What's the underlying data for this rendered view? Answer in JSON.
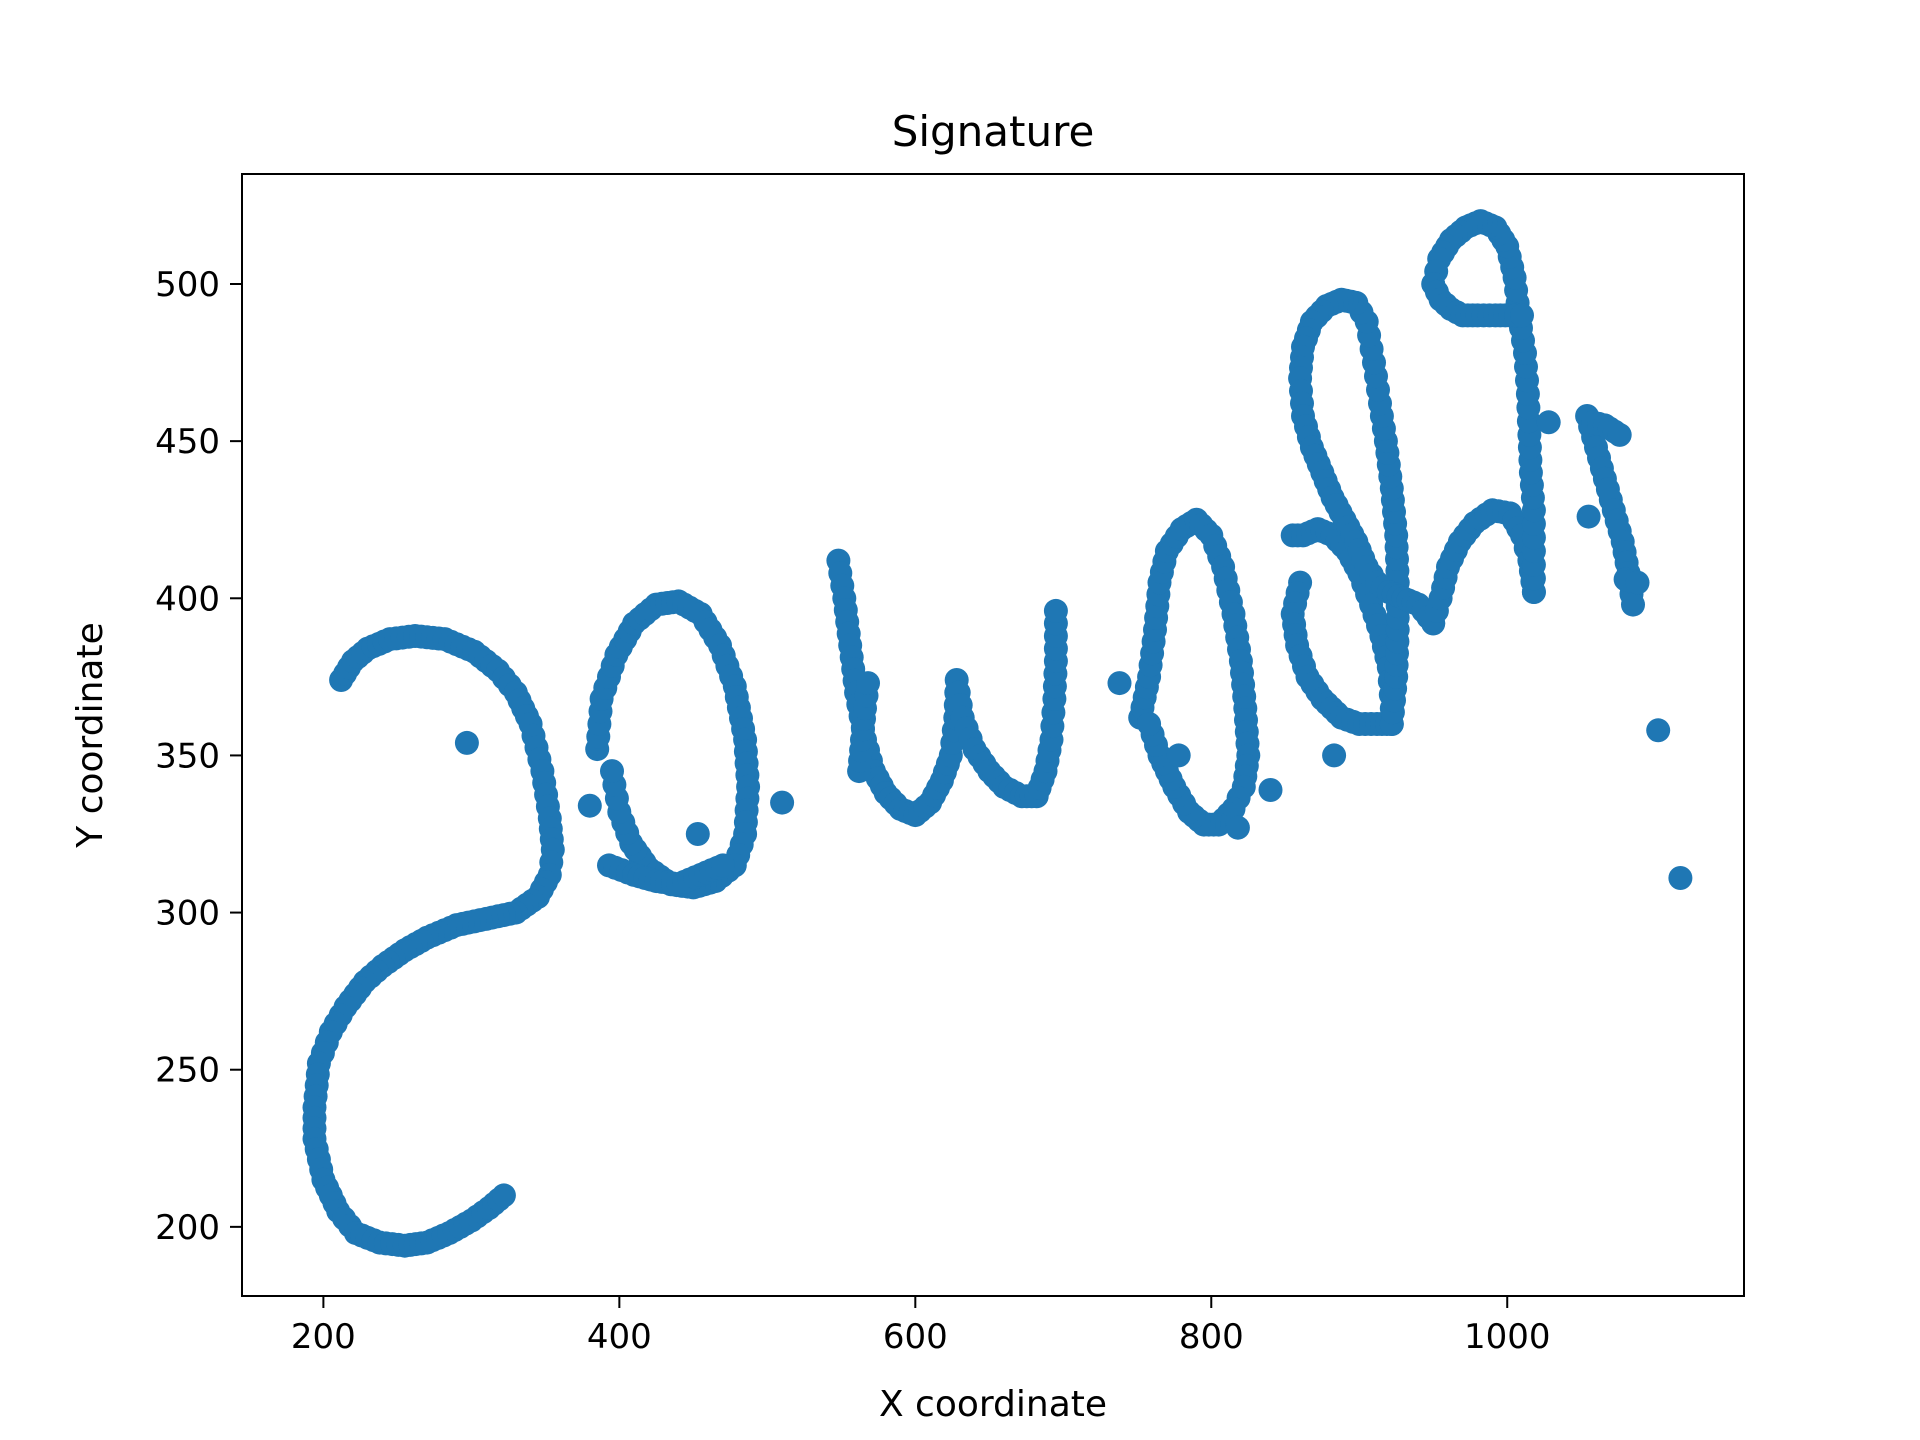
{
  "chart_data": {
    "type": "scatter",
    "title": "Signature",
    "xlabel": "X coordinate",
    "ylabel": "Y coordinate",
    "xlim": [
      145,
      1160
    ],
    "ylim": [
      178,
      535
    ],
    "xticks": [
      200,
      400,
      600,
      800,
      1000
    ],
    "yticks": [
      200,
      250,
      300,
      350,
      400,
      450,
      500
    ],
    "grid": false,
    "legend": "none",
    "marker_color": "#1f77b4",
    "series": [
      {
        "strokes": [
          [
            [
              212,
              374
            ],
            [
              220,
              380
            ],
            [
              230,
              384
            ],
            [
              245,
              387
            ],
            [
              262,
              388
            ],
            [
              282,
              387
            ],
            [
              302,
              383
            ],
            [
              318,
              377
            ],
            [
              330,
              370
            ],
            [
              340,
              360
            ],
            [
              348,
              345
            ],
            [
              353,
              330
            ],
            [
              355,
              320
            ],
            [
              353,
              312
            ],
            [
              345,
              305
            ],
            [
              330,
              300
            ],
            [
              310,
              298
            ],
            [
              290,
              296
            ],
            [
              270,
              292
            ],
            [
              255,
              288
            ],
            [
              240,
              283
            ],
            [
              228,
              278
            ],
            [
              215,
              270
            ],
            [
              205,
              262
            ],
            [
              197,
              252
            ],
            [
              194,
              238
            ],
            [
              194,
              228
            ],
            [
              200,
              215
            ],
            [
              210,
              205
            ],
            [
              222,
              198
            ],
            [
              238,
              195
            ],
            [
              255,
              194
            ],
            [
              270,
              195
            ],
            [
              285,
              198
            ],
            [
              300,
              202
            ],
            [
              312,
              206
            ],
            [
              322,
              210
            ]
          ],
          [
            [
              297,
              354
            ]
          ],
          [
            [
              380,
              334
            ]
          ],
          [
            [
              385,
              352
            ],
            [
              388,
              368
            ],
            [
              398,
              382
            ],
            [
              410,
              392
            ],
            [
              425,
              398
            ],
            [
              440,
              399
            ],
            [
              455,
              395
            ],
            [
              468,
              385
            ],
            [
              478,
              372
            ],
            [
              485,
              355
            ],
            [
              487,
              340
            ],
            [
              485,
              325
            ],
            [
              478,
              315
            ],
            [
              465,
              310
            ],
            [
              450,
              308
            ],
            [
              435,
              309
            ],
            [
              420,
              314
            ],
            [
              408,
              322
            ],
            [
              400,
              332
            ],
            [
              395,
              345
            ]
          ],
          [
            [
              393,
              315
            ],
            [
              410,
              312
            ],
            [
              425,
              310
            ],
            [
              440,
              309
            ],
            [
              455,
              312
            ],
            [
              470,
              315
            ]
          ],
          [
            [
              453,
              325
            ]
          ],
          [
            [
              510,
              335
            ]
          ],
          [
            [
              548,
              412
            ],
            [
              552,
              400
            ],
            [
              556,
              385
            ],
            [
              560,
              370
            ],
            [
              566,
              355
            ],
            [
              572,
              345
            ],
            [
              580,
              338
            ],
            [
              590,
              333
            ],
            [
              600,
              331
            ],
            [
              610,
              335
            ],
            [
              618,
              342
            ],
            [
              624,
              350
            ],
            [
              627,
              362
            ],
            [
              628,
              374
            ],
            [
              632,
              362
            ],
            [
              640,
              352
            ],
            [
              650,
              345
            ],
            [
              660,
              340
            ],
            [
              672,
              337
            ],
            [
              682,
              337
            ],
            [
              688,
              345
            ],
            [
              692,
              355
            ],
            [
              694,
              368
            ],
            [
              695,
              380
            ],
            [
              695,
              396
            ]
          ],
          [
            [
              562,
              345
            ],
            [
              564,
              355
            ],
            [
              566,
              365
            ],
            [
              568,
              373
            ]
          ],
          [
            [
              738,
              373
            ]
          ],
          [
            [
              752,
              362
            ],
            [
              758,
              375
            ],
            [
              762,
              390
            ],
            [
              765,
              405
            ],
            [
              770,
              415
            ],
            [
              780,
              422
            ],
            [
              790,
              425
            ],
            [
              800,
              420
            ],
            [
              808,
              410
            ],
            [
              815,
              395
            ],
            [
              820,
              380
            ],
            [
              823,
              365
            ],
            [
              825,
              350
            ],
            [
              822,
              340
            ],
            [
              815,
              333
            ],
            [
              805,
              328
            ],
            [
              795,
              328
            ],
            [
              785,
              332
            ],
            [
              775,
              340
            ],
            [
              765,
              350
            ],
            [
              758,
              360
            ]
          ],
          [
            [
              778,
              350
            ]
          ],
          [
            [
              818,
              327
            ]
          ],
          [
            [
              840,
              339
            ]
          ],
          [
            [
              860,
              405
            ],
            [
              855,
              395
            ],
            [
              858,
              385
            ],
            [
              865,
              375
            ],
            [
              875,
              368
            ],
            [
              888,
              362
            ],
            [
              900,
              360
            ],
            [
              912,
              360
            ],
            [
              922,
              360
            ]
          ],
          [
            [
              855,
              420
            ],
            [
              862,
              420
            ],
            [
              872,
              422
            ],
            [
              882,
              420
            ],
            [
              892,
              415
            ],
            [
              900,
              408
            ],
            [
              908,
              398
            ],
            [
              915,
              388
            ],
            [
              920,
              378
            ],
            [
              922,
              365
            ]
          ],
          [
            [
              883,
              350
            ]
          ],
          [
            [
              922,
              360
            ],
            [
              925,
              375
            ],
            [
              926,
              390
            ],
            [
              926,
              405
            ],
            [
              925,
              420
            ],
            [
              922,
              435
            ],
            [
              918,
              450
            ],
            [
              914,
              462
            ],
            [
              910,
              475
            ],
            [
              905,
              488
            ],
            [
              898,
              494
            ],
            [
              888,
              495
            ],
            [
              878,
              493
            ],
            [
              868,
              488
            ],
            [
              862,
              480
            ],
            [
              860,
              470
            ],
            [
              862,
              458
            ],
            [
              868,
              448
            ],
            [
              875,
              440
            ],
            [
              882,
              432
            ],
            [
              890,
              425
            ],
            [
              898,
              418
            ],
            [
              905,
              410
            ],
            [
              912,
              405
            ],
            [
              920,
              402
            ],
            [
              930,
              400
            ],
            [
              940,
              398
            ],
            [
              950,
              392
            ]
          ],
          [
            [
              950,
              392
            ],
            [
              955,
              400
            ],
            [
              960,
              410
            ],
            [
              968,
              418
            ],
            [
              978,
              424
            ],
            [
              990,
              428
            ],
            [
              1002,
              427
            ],
            [
              1010,
              420
            ],
            [
              1015,
              412
            ],
            [
              1018,
              402
            ]
          ],
          [
            [
              1018,
              402
            ],
            [
              1018,
              415
            ],
            [
              1018,
              428
            ],
            [
              1016,
              440
            ],
            [
              1015,
              452
            ],
            [
              1014,
              465
            ],
            [
              1012,
              478
            ],
            [
              1008,
              490
            ],
            [
              1005,
              502
            ],
            [
              1000,
              512
            ],
            [
              992,
              518
            ],
            [
              982,
              520
            ],
            [
              972,
              518
            ],
            [
              962,
              514
            ],
            [
              954,
              508
            ],
            [
              950,
              500
            ],
            [
              955,
              495
            ],
            [
              962,
              492
            ],
            [
              970,
              490
            ],
            [
              980,
              490
            ],
            [
              992,
              490
            ],
            [
              1002,
              490
            ],
            [
              1010,
              490
            ]
          ],
          [
            [
              1028,
              456
            ]
          ],
          [
            [
              1055,
              426
            ]
          ],
          [
            [
              1054,
              458
            ],
            [
              1060,
              448
            ],
            [
              1066,
              438
            ],
            [
              1072,
              428
            ],
            [
              1078,
              418
            ],
            [
              1082,
              408
            ],
            [
              1085,
              398
            ]
          ],
          [
            [
              1058,
              456
            ],
            [
              1066,
              455
            ],
            [
              1076,
              452
            ]
          ],
          [
            [
              1080,
              406
            ],
            [
              1088,
              405
            ]
          ],
          [
            [
              1102,
              358
            ]
          ],
          [
            [
              1117,
              311
            ]
          ]
        ]
      }
    ]
  }
}
